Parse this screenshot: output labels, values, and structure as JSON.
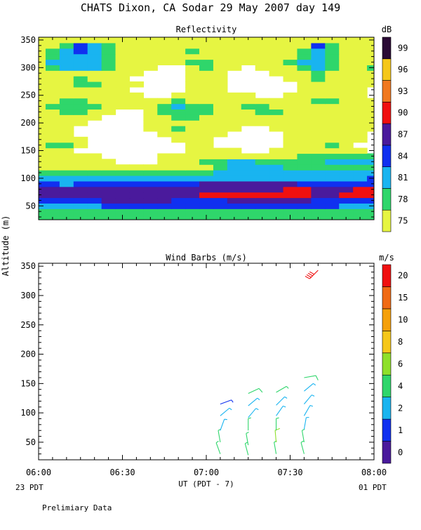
{
  "header": {
    "title": "CHATS Dixon, CA  Sodar  29 May 2007  day 149"
  },
  "colors": {
    "refl": [
      "#e6f542",
      "#2fd66b",
      "#19b4f0",
      "#1030f0",
      "#4a1a9c",
      "#f01010",
      "#f07820",
      "#f5c71a",
      "#2a0a35"
    ],
    "wind": [
      "#4a1a9c",
      "#1030f0",
      "#19b4f0",
      "#2fd66b",
      "#8ee02a",
      "#f5c71a",
      "#f5a00a",
      "#f06a14",
      "#f01010"
    ]
  },
  "axes": {
    "ylabel": "Altitude (m)",
    "xlabel": "UT  (PDT - 7)",
    "xticks": [
      "06:00",
      "06:30",
      "07:00",
      "07:30",
      "08:00"
    ],
    "yticks": [
      "50",
      "100",
      "150",
      "200",
      "250",
      "300",
      "350"
    ],
    "corner_left": "23 PDT",
    "corner_right": "01 PDT",
    "footer": "Prelimiary Data"
  },
  "chart_data": [
    {
      "type": "heatmap",
      "title": "Reflectivity",
      "units": "dB",
      "x": [
        "06:00",
        "06:05",
        "06:10",
        "06:15",
        "06:20",
        "06:25",
        "06:30",
        "06:35",
        "06:40",
        "06:45",
        "06:50",
        "06:55",
        "07:00",
        "07:05",
        "07:10",
        "07:15",
        "07:20",
        "07:25",
        "07:30",
        "07:35",
        "07:40",
        "07:45",
        "07:50",
        "07:55",
        "08:00"
      ],
      "altitudes_m": [
        40,
        50,
        60,
        70,
        80,
        90,
        100,
        110,
        120,
        130,
        140,
        150,
        160,
        170,
        180,
        190,
        200,
        210,
        220,
        230,
        240,
        250,
        260,
        270,
        280,
        290,
        300,
        310,
        320,
        330,
        340,
        350
      ],
      "ylim": [
        25,
        355
      ],
      "colorbar_ticks": [
        "75",
        "78",
        "81",
        "84",
        "87",
        "90",
        "93",
        "96",
        "99"
      ],
      "level_note": "cell values are colorbar class indices 0-8 (0=75 dB ... 8=99 dB); -1 = no data",
      "grid": [
        [
          1,
          1,
          1,
          1,
          1,
          1,
          1,
          1,
          1,
          1,
          1,
          1,
          1,
          1,
          1,
          1,
          1,
          1,
          1,
          1,
          1,
          1,
          1,
          1,
          1
        ],
        [
          2,
          2,
          2,
          2,
          2,
          3,
          3,
          3,
          3,
          3,
          3,
          3,
          3,
          3,
          3,
          3,
          3,
          3,
          3,
          3,
          3,
          3,
          2,
          2,
          2
        ],
        [
          3,
          3,
          3,
          3,
          3,
          4,
          4,
          4,
          4,
          4,
          3,
          3,
          3,
          3,
          4,
          4,
          4,
          4,
          4,
          4,
          3,
          3,
          3,
          3,
          3
        ],
        [
          4,
          4,
          4,
          4,
          4,
          4,
          4,
          4,
          4,
          4,
          4,
          4,
          5,
          5,
          5,
          5,
          5,
          5,
          5,
          5,
          4,
          4,
          5,
          5,
          5
        ],
        [
          4,
          4,
          4,
          4,
          4,
          4,
          4,
          4,
          4,
          4,
          4,
          4,
          4,
          4,
          4,
          4,
          4,
          4,
          5,
          5,
          4,
          4,
          4,
          5,
          5
        ],
        [
          3,
          3,
          2,
          3,
          3,
          3,
          3,
          3,
          3,
          3,
          3,
          3,
          4,
          4,
          4,
          4,
          4,
          4,
          4,
          3,
          3,
          3,
          3,
          3,
          3
        ],
        [
          2,
          2,
          2,
          2,
          2,
          2,
          2,
          2,
          2,
          2,
          2,
          2,
          2,
          2,
          2,
          2,
          2,
          2,
          2,
          2,
          2,
          2,
          2,
          2,
          3
        ],
        [
          1,
          1,
          1,
          1,
          1,
          1,
          1,
          1,
          1,
          1,
          1,
          1,
          1,
          2,
          2,
          2,
          2,
          2,
          2,
          2,
          2,
          2,
          2,
          2,
          2
        ],
        [
          0,
          0,
          0,
          0,
          0,
          0,
          0,
          0,
          0,
          0,
          0,
          0,
          0,
          1,
          2,
          2,
          2,
          2,
          1,
          1,
          1,
          1,
          1,
          1,
          1
        ],
        [
          0,
          0,
          0,
          0,
          0,
          0,
          -1,
          -1,
          -1,
          0,
          0,
          0,
          1,
          1,
          2,
          2,
          1,
          1,
          1,
          1,
          1,
          2,
          2,
          2,
          2
        ],
        [
          0,
          0,
          0,
          0,
          0,
          -1,
          -1,
          -1,
          -1,
          0,
          0,
          0,
          0,
          0,
          0,
          0,
          0,
          0,
          0,
          1,
          1,
          1,
          1,
          1,
          1
        ],
        [
          0,
          0,
          0,
          -1,
          -1,
          -1,
          -1,
          -1,
          -1,
          -1,
          -1,
          0,
          0,
          0,
          0,
          -1,
          -1,
          0,
          0,
          0,
          0,
          0,
          0,
          0,
          -1
        ],
        [
          0,
          1,
          1,
          0,
          -1,
          -1,
          -1,
          -1,
          -1,
          -1,
          -1,
          0,
          0,
          -1,
          -1,
          -1,
          -1,
          -1,
          0,
          0,
          0,
          1,
          0,
          -1,
          -1
        ],
        [
          0,
          0,
          0,
          0,
          -1,
          -1,
          -1,
          -1,
          -1,
          -1,
          0,
          0,
          0,
          -1,
          -1,
          -1,
          -1,
          -1,
          0,
          0,
          0,
          0,
          0,
          0,
          -1
        ],
        [
          0,
          0,
          0,
          -1,
          -1,
          -1,
          -1,
          -1,
          -1,
          0,
          0,
          0,
          0,
          0,
          -1,
          -1,
          -1,
          -1,
          0,
          0,
          0,
          0,
          0,
          0,
          -1
        ],
        [
          0,
          0,
          0,
          -1,
          -1,
          -1,
          -1,
          -1,
          0,
          0,
          1,
          0,
          0,
          0,
          0,
          -1,
          -1,
          0,
          0,
          0,
          0,
          0,
          0,
          0,
          0
        ],
        [
          0,
          0,
          0,
          0,
          -1,
          -1,
          -1,
          -1,
          0,
          0,
          0,
          0,
          0,
          0,
          0,
          0,
          0,
          0,
          0,
          0,
          0,
          0,
          0,
          0,
          0
        ],
        [
          0,
          0,
          0,
          0,
          0,
          -1,
          -1,
          -1,
          0,
          0,
          1,
          1,
          0,
          0,
          0,
          0,
          0,
          0,
          0,
          0,
          0,
          0,
          0,
          0,
          0
        ],
        [
          0,
          0,
          1,
          1,
          0,
          0,
          -1,
          -1,
          0,
          1,
          1,
          1,
          1,
          0,
          0,
          0,
          1,
          1,
          0,
          0,
          0,
          0,
          0,
          0,
          0
        ],
        [
          0,
          1,
          1,
          1,
          1,
          0,
          0,
          0,
          0,
          1,
          2,
          1,
          1,
          0,
          0,
          1,
          1,
          0,
          0,
          0,
          0,
          0,
          0,
          0,
          0
        ],
        [
          0,
          0,
          1,
          1,
          0,
          0,
          0,
          0,
          0,
          0,
          1,
          0,
          0,
          0,
          0,
          0,
          0,
          0,
          0,
          0,
          1,
          1,
          0,
          0,
          0
        ],
        [
          0,
          0,
          0,
          0,
          0,
          0,
          0,
          0,
          -1,
          -1,
          0,
          0,
          0,
          0,
          0,
          0,
          -1,
          -1,
          0,
          0,
          0,
          0,
          0,
          0,
          -1
        ],
        [
          0,
          0,
          0,
          0,
          0,
          0,
          0,
          -1,
          -1,
          -1,
          -1,
          0,
          0,
          0,
          -1,
          -1,
          -1,
          -1,
          -1,
          0,
          0,
          0,
          0,
          0,
          -1
        ],
        [
          0,
          0,
          0,
          1,
          1,
          0,
          0,
          0,
          -1,
          -1,
          -1,
          0,
          0,
          0,
          -1,
          -1,
          -1,
          -1,
          -1,
          0,
          0,
          0,
          0,
          0,
          0
        ],
        [
          0,
          0,
          0,
          1,
          0,
          0,
          0,
          -1,
          -1,
          -1,
          -1,
          0,
          0,
          0,
          -1,
          -1,
          -1,
          -1,
          0,
          0,
          1,
          0,
          0,
          0,
          0
        ],
        [
          0,
          0,
          0,
          0,
          0,
          0,
          0,
          0,
          -1,
          -1,
          -1,
          0,
          0,
          0,
          -1,
          -1,
          -1,
          0,
          0,
          0,
          1,
          0,
          0,
          0,
          0
        ],
        [
          0,
          1,
          2,
          2,
          2,
          1,
          0,
          0,
          0,
          -1,
          -1,
          0,
          1,
          0,
          0,
          -1,
          0,
          0,
          0,
          1,
          2,
          1,
          0,
          0,
          1
        ],
        [
          0,
          2,
          2,
          2,
          2,
          1,
          0,
          0,
          0,
          0,
          0,
          1,
          1,
          0,
          0,
          0,
          0,
          0,
          1,
          2,
          2,
          1,
          0,
          0,
          0
        ],
        [
          0,
          1,
          2,
          2,
          2,
          1,
          0,
          0,
          0,
          0,
          0,
          0,
          0,
          0,
          0,
          0,
          0,
          0,
          0,
          1,
          2,
          1,
          0,
          0,
          0
        ],
        [
          0,
          1,
          2,
          3,
          2,
          1,
          0,
          0,
          0,
          0,
          0,
          1,
          0,
          0,
          0,
          0,
          0,
          0,
          0,
          1,
          2,
          1,
          0,
          0,
          0
        ],
        [
          0,
          0,
          1,
          3,
          2,
          1,
          0,
          0,
          0,
          0,
          0,
          0,
          0,
          0,
          0,
          0,
          0,
          0,
          0,
          0,
          3,
          1,
          0,
          0,
          0
        ],
        [
          0,
          0,
          0,
          0,
          0,
          0,
          0,
          0,
          0,
          0,
          0,
          0,
          0,
          0,
          0,
          0,
          0,
          0,
          0,
          0,
          0,
          0,
          0,
          0,
          0
        ]
      ]
    },
    {
      "type": "scatter",
      "title": "Wind Barbs (m/s)",
      "units": "m/s",
      "xlim": [
        "06:00",
        "08:00"
      ],
      "ylim": [
        20,
        355
      ],
      "colorbar_ticks": [
        "0",
        "1",
        "2",
        "4",
        "6",
        "8",
        "10",
        "15",
        "20"
      ],
      "series": [
        {
          "x": "07:05",
          "points": [
            {
              "alt": 30,
              "speed": 4,
              "dir": 340
            },
            {
              "alt": 50,
              "speed": 4,
              "dir": 350
            },
            {
              "alt": 70,
              "speed": 3,
              "dir": 20
            },
            {
              "alt": 95,
              "speed": 2,
              "dir": 50
            },
            {
              "alt": 115,
              "speed": 1.5,
              "dir": 70
            }
          ]
        },
        {
          "x": "07:15",
          "points": [
            {
              "alt": 28,
              "speed": 4,
              "dir": 345
            },
            {
              "alt": 45,
              "speed": 4,
              "dir": 350
            },
            {
              "alt": 70,
              "speed": 4,
              "dir": 0
            },
            {
              "alt": 92,
              "speed": 2,
              "dir": 40
            },
            {
              "alt": 112,
              "speed": 3,
              "dir": 50
            },
            {
              "alt": 133,
              "speed": 5,
              "dir": 65
            }
          ]
        },
        {
          "x": "07:25",
          "points": [
            {
              "alt": 30,
              "speed": 4,
              "dir": 350
            },
            {
              "alt": 50,
              "speed": 6,
              "dir": 355
            },
            {
              "alt": 70,
              "speed": 4,
              "dir": 0
            },
            {
              "alt": 95,
              "speed": 3,
              "dir": 35
            },
            {
              "alt": 113,
              "speed": 3,
              "dir": 45
            },
            {
              "alt": 135,
              "speed": 4,
              "dir": 60
            }
          ]
        },
        {
          "x": "07:35",
          "points": [
            {
              "alt": 30,
              "speed": 4,
              "dir": 345
            },
            {
              "alt": 50,
              "speed": 4,
              "dir": 350
            },
            {
              "alt": 72,
              "speed": 3,
              "dir": 10
            },
            {
              "alt": 95,
              "speed": 2.5,
              "dir": 30
            },
            {
              "alt": 115,
              "speed": 3,
              "dir": 40
            },
            {
              "alt": 137,
              "speed": 3,
              "dir": 50
            },
            {
              "alt": 160,
              "speed": 5,
              "dir": 80
            }
          ]
        },
        {
          "x": "07:40",
          "points": [
            {
              "alt": 343,
              "speed": 20,
              "dir": 225
            }
          ]
        }
      ]
    }
  ]
}
